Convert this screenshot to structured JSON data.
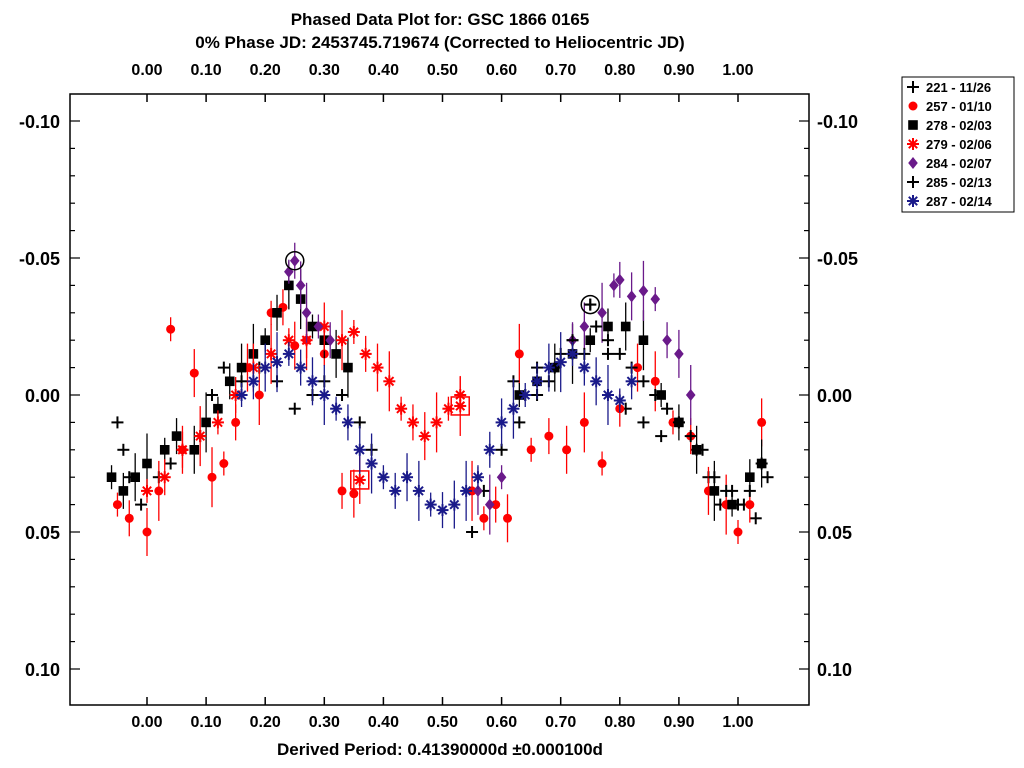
{
  "chart_data": {
    "type": "scatter",
    "title": "Phased Data Plot for: GSC 1866 0165",
    "subtitle": "0% Phase JD:  2453745.719674   (Corrected to Heliocentric JD)",
    "xlabel": "Derived Period: 0.41390000d   ±0.000100d",
    "ylabel": "",
    "xlim": [
      -0.14,
      1.14
    ],
    "ylim": [
      0.112,
      -0.112
    ],
    "y_inverted": true,
    "x_ticks": [
      "0.00",
      "0.10",
      "0.20",
      "0.30",
      "0.40",
      "0.50",
      "0.60",
      "0.70",
      "0.80",
      "0.90",
      "1.00"
    ],
    "y_ticks": [
      "-0.10",
      "-0.05",
      "0.00",
      "0.05",
      "0.10"
    ],
    "y_tick_values": [
      -0.1,
      -0.05,
      0.0,
      0.05,
      0.1
    ],
    "x_tick_values": [
      0.0,
      0.1,
      0.2,
      0.3,
      0.4,
      0.5,
      0.6,
      0.7,
      0.8,
      0.9,
      1.0
    ],
    "grid": false,
    "legend_position": "top-right outside",
    "series": [
      {
        "name": "221 - 11/26",
        "marker": "plus",
        "color": "#000000",
        "errorbars": false,
        "x": [
          -0.05,
          -0.04,
          -0.03,
          -0.01,
          0.02,
          0.04,
          0.06,
          0.09,
          0.11,
          0.13,
          0.16,
          0.19,
          0.22,
          0.25,
          0.28,
          0.3,
          0.33,
          0.36,
          0.38,
          0.55,
          0.57,
          0.6,
          0.63,
          0.66,
          0.69,
          0.72,
          0.75,
          0.78,
          0.81,
          0.84,
          0.87,
          0.9,
          0.93,
          0.95,
          0.97,
          0.99,
          1.01,
          1.03,
          1.05
        ],
        "y": [
          0.01,
          0.02,
          0.03,
          0.04,
          0.03,
          0.025,
          0.02,
          0.015,
          0.0,
          -0.01,
          -0.005,
          -0.01,
          -0.005,
          0.005,
          0.0,
          -0.005,
          0.0,
          0.01,
          0.02,
          0.05,
          0.035,
          0.02,
          0.01,
          0.0,
          -0.01,
          -0.02,
          -0.033,
          -0.015,
          0.005,
          0.01,
          0.015,
          0.01,
          0.02,
          0.03,
          0.04,
          0.035,
          0.04,
          0.045,
          0.03
        ]
      },
      {
        "name": "257 - 01/10",
        "marker": "circle",
        "color": "#ff0000",
        "errorbars": true,
        "x": [
          -0.05,
          -0.03,
          0.0,
          0.02,
          0.04,
          0.06,
          0.08,
          0.11,
          0.13,
          0.15,
          0.17,
          0.19,
          0.21,
          0.23,
          0.25,
          0.27,
          0.3,
          0.33,
          0.35,
          0.55,
          0.57,
          0.59,
          0.61,
          0.63,
          0.65,
          0.68,
          0.71,
          0.74,
          0.77,
          0.8,
          0.83,
          0.86,
          0.89,
          0.92,
          0.95,
          0.98,
          1.0,
          1.02,
          1.04
        ],
        "y": [
          0.04,
          0.045,
          0.05,
          0.035,
          -0.024,
          0.02,
          -0.008,
          0.03,
          0.025,
          0.01,
          -0.01,
          0.0,
          -0.03,
          -0.032,
          -0.018,
          -0.02,
          -0.015,
          0.035,
          0.036,
          0.035,
          0.045,
          0.04,
          0.045,
          -0.015,
          0.02,
          0.015,
          0.02,
          0.01,
          0.025,
          0.005,
          -0.01,
          -0.005,
          0.01,
          0.015,
          0.035,
          0.04,
          0.05,
          0.04,
          0.01
        ]
      },
      {
        "name": "278 - 02/03",
        "marker": "square",
        "color": "#000000",
        "errorbars": true,
        "x": [
          -0.06,
          -0.04,
          -0.02,
          0.0,
          0.03,
          0.05,
          0.08,
          0.1,
          0.12,
          0.14,
          0.16,
          0.18,
          0.2,
          0.22,
          0.24,
          0.26,
          0.28,
          0.3,
          0.32,
          0.34,
          0.63,
          0.66,
          0.69,
          0.72,
          0.75,
          0.78,
          0.81,
          0.84,
          0.87,
          0.9,
          0.93,
          0.96,
          0.99,
          1.02,
          1.04
        ],
        "y": [
          0.03,
          0.035,
          0.03,
          0.025,
          0.02,
          0.015,
          0.02,
          0.01,
          0.005,
          -0.005,
          -0.01,
          -0.015,
          -0.02,
          -0.03,
          -0.04,
          -0.035,
          -0.025,
          -0.02,
          -0.015,
          -0.01,
          0.0,
          -0.005,
          -0.01,
          -0.015,
          -0.02,
          -0.025,
          -0.025,
          -0.02,
          0.0,
          0.01,
          0.02,
          0.035,
          0.04,
          0.03,
          0.025
        ]
      },
      {
        "name": "279 - 02/06",
        "marker": "asterisk",
        "color": "#ff0000",
        "errorbars": true,
        "x": [
          0.0,
          0.03,
          0.06,
          0.09,
          0.12,
          0.15,
          0.18,
          0.21,
          0.24,
          0.27,
          0.3,
          0.33,
          0.35,
          0.37,
          0.39,
          0.41,
          0.43,
          0.45,
          0.47,
          0.49,
          0.51,
          0.53,
          0.36,
          0.53
        ],
        "y": [
          0.035,
          0.03,
          0.02,
          0.015,
          0.01,
          0.0,
          -0.01,
          -0.015,
          -0.02,
          -0.02,
          -0.025,
          -0.02,
          -0.023,
          -0.015,
          -0.01,
          -0.005,
          0.005,
          0.01,
          0.015,
          0.01,
          0.005,
          0.0,
          0.031,
          0.004
        ],
        "highlighted_points": [
          {
            "x": 0.36,
            "y": 0.031
          },
          {
            "x": 0.53,
            "y": 0.004
          }
        ]
      },
      {
        "name": "284 - 02/07",
        "marker": "diamond",
        "color": "#6a1a8a",
        "errorbars": true,
        "x": [
          0.24,
          0.25,
          0.26,
          0.27,
          0.29,
          0.31,
          0.56,
          0.58,
          0.6,
          0.72,
          0.74,
          0.77,
          0.79,
          0.8,
          0.82,
          0.84,
          0.86,
          0.88,
          0.9,
          0.92
        ],
        "y": [
          -0.045,
          -0.049,
          -0.04,
          -0.03,
          -0.025,
          -0.02,
          0.035,
          0.04,
          0.03,
          -0.02,
          -0.025,
          -0.03,
          -0.04,
          -0.042,
          -0.036,
          -0.038,
          -0.035,
          -0.02,
          -0.015,
          0.0
        ],
        "highlighted_points": [
          {
            "x": 0.25,
            "y": -0.049
          }
        ]
      },
      {
        "name": "285 - 02/13",
        "marker": "plus",
        "color": "#000000",
        "errorbars": false,
        "x": [
          0.62,
          0.64,
          0.66,
          0.68,
          0.7,
          0.72,
          0.74,
          0.76,
          0.78,
          0.8,
          0.82,
          0.84,
          0.86,
          0.88,
          0.9,
          0.92,
          0.94,
          0.96,
          0.98,
          1.0,
          1.02,
          1.04,
          0.75
        ],
        "y": [
          -0.005,
          0.0,
          -0.01,
          -0.005,
          -0.015,
          -0.02,
          -0.015,
          -0.025,
          -0.02,
          -0.015,
          -0.01,
          -0.005,
          0.0,
          0.005,
          0.01,
          0.015,
          0.02,
          0.03,
          0.035,
          0.04,
          0.035,
          0.025,
          -0.033
        ],
        "highlighted_points": [
          {
            "x": 0.75,
            "y": -0.033
          }
        ]
      },
      {
        "name": "287 - 02/14",
        "marker": "asterisk",
        "color": "#1a1a8a",
        "errorbars": true,
        "x": [
          0.16,
          0.18,
          0.2,
          0.22,
          0.24,
          0.26,
          0.28,
          0.3,
          0.32,
          0.34,
          0.36,
          0.38,
          0.4,
          0.42,
          0.44,
          0.46,
          0.48,
          0.5,
          0.52,
          0.54,
          0.56,
          0.58,
          0.6,
          0.62,
          0.64,
          0.66,
          0.68,
          0.7,
          0.72,
          0.74,
          0.76,
          0.78,
          0.8,
          0.82
        ],
        "y": [
          0.0,
          -0.005,
          -0.01,
          -0.012,
          -0.015,
          -0.01,
          -0.005,
          0.0,
          0.005,
          0.01,
          0.02,
          0.025,
          0.03,
          0.035,
          0.03,
          0.035,
          0.04,
          0.042,
          0.04,
          0.035,
          0.03,
          0.02,
          0.01,
          0.005,
          0.0,
          -0.005,
          -0.01,
          -0.012,
          -0.015,
          -0.01,
          -0.005,
          0.0,
          0.002,
          -0.005
        ]
      }
    ]
  },
  "legend": {
    "entries": [
      {
        "label": "221 - 11/26",
        "marker": "plus",
        "color": "#000000"
      },
      {
        "label": "257 - 01/10",
        "marker": "circle",
        "color": "#ff0000"
      },
      {
        "label": "278 - 02/03",
        "marker": "square",
        "color": "#000000"
      },
      {
        "label": "279 - 02/06",
        "marker": "asterisk",
        "color": "#ff0000"
      },
      {
        "label": "284 - 02/07",
        "marker": "diamond",
        "color": "#6a1a8a"
      },
      {
        "label": "285 - 02/13",
        "marker": "plus",
        "color": "#000000"
      },
      {
        "label": "287 - 02/14",
        "marker": "asterisk",
        "color": "#1a1a8a"
      }
    ]
  }
}
